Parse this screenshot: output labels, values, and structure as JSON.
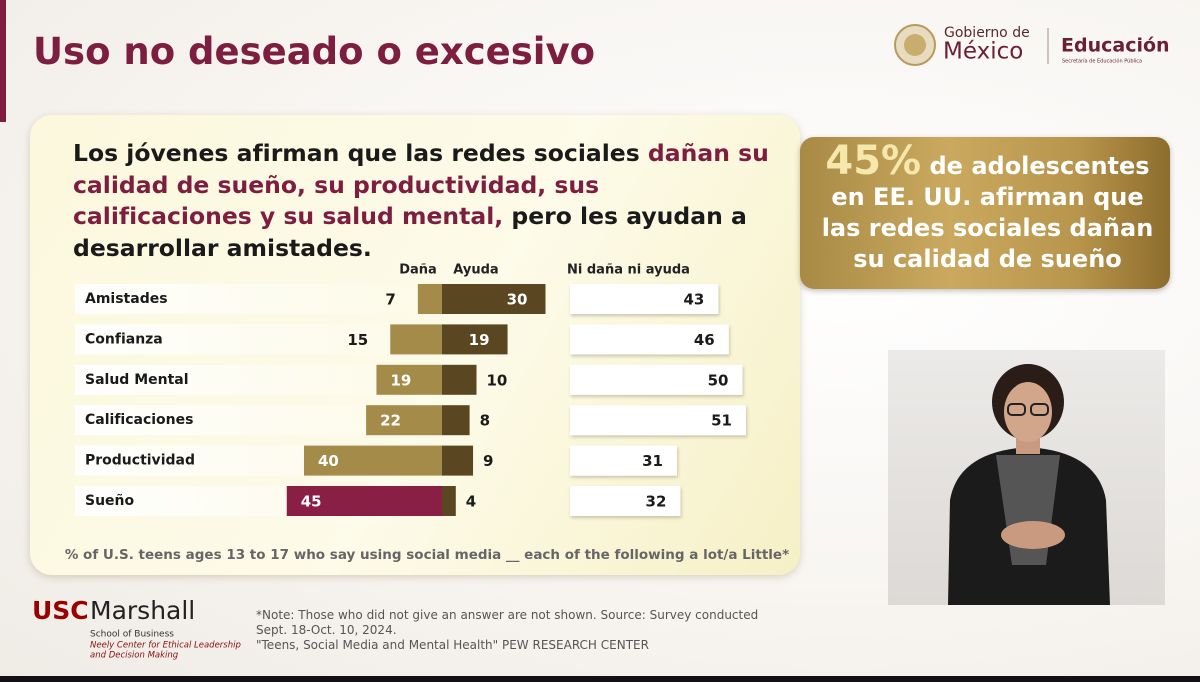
{
  "header": {
    "title": "Uso no deseado o excesivo",
    "logo_line1": "Gobierno de",
    "logo_line2": "México",
    "logo_department": "Educación",
    "logo_department_sub": "Secretaría de Educación Pública"
  },
  "chart_data": {
    "type": "diverging-bar",
    "title": [
      {
        "text": "Los jóvenes afirman que las redes sociales ",
        "highlight": false
      },
      {
        "text": "dañan su calidad de sueño, su productividad, sus calificaciones y su salud mental,",
        "highlight": true
      },
      {
        "text": " pero les ayudan a desarrollar amistades.",
        "highlight": false
      }
    ],
    "categories": [
      "Amistades",
      "Confianza",
      "Salud Mental",
      "Calificaciones",
      "Productividad",
      "Sueño"
    ],
    "series": [
      {
        "name": "Daña",
        "color": "#a48b4a",
        "colors": [
          "#a48b4a",
          "#a48b4a",
          "#a48b4a",
          "#a48b4a",
          "#a48b4a",
          "#8a1f45"
        ],
        "values": [
          7,
          15,
          19,
          22,
          40,
          45
        ]
      },
      {
        "name": "Ayuda",
        "color": "#5a4722",
        "values": [
          30,
          19,
          10,
          8,
          9,
          4
        ]
      },
      {
        "name": "Ni daña ni ayuda",
        "color": "#ffffff",
        "values": [
          43,
          46,
          50,
          51,
          31,
          32
        ]
      }
    ],
    "note": "% of U.S. teens ages 13 to 17 who say using social media __ each of the following a lot/a Little*"
  },
  "callout": {
    "highlight": "45%",
    "lines": [
      "de adolescentes",
      "en EE. UU. afirman que",
      "las redes sociales dañan",
      "su calidad de sueño"
    ]
  },
  "footer": {
    "logo_usc": "USC",
    "logo_marshall": "Marshall",
    "logo_school": "School of Business",
    "logo_center_1": "Neely Center for Ethical Leadership",
    "logo_center_2": "and Decision Making",
    "note_lines": [
      "*Note: Those who did not give an answer are not shown. Source: Survey conducted",
      "Sept. 18-Oct. 10, 2024.",
      "\"Teens, Social Media and Mental Health\" PEW RESEARCH CENTER"
    ]
  }
}
